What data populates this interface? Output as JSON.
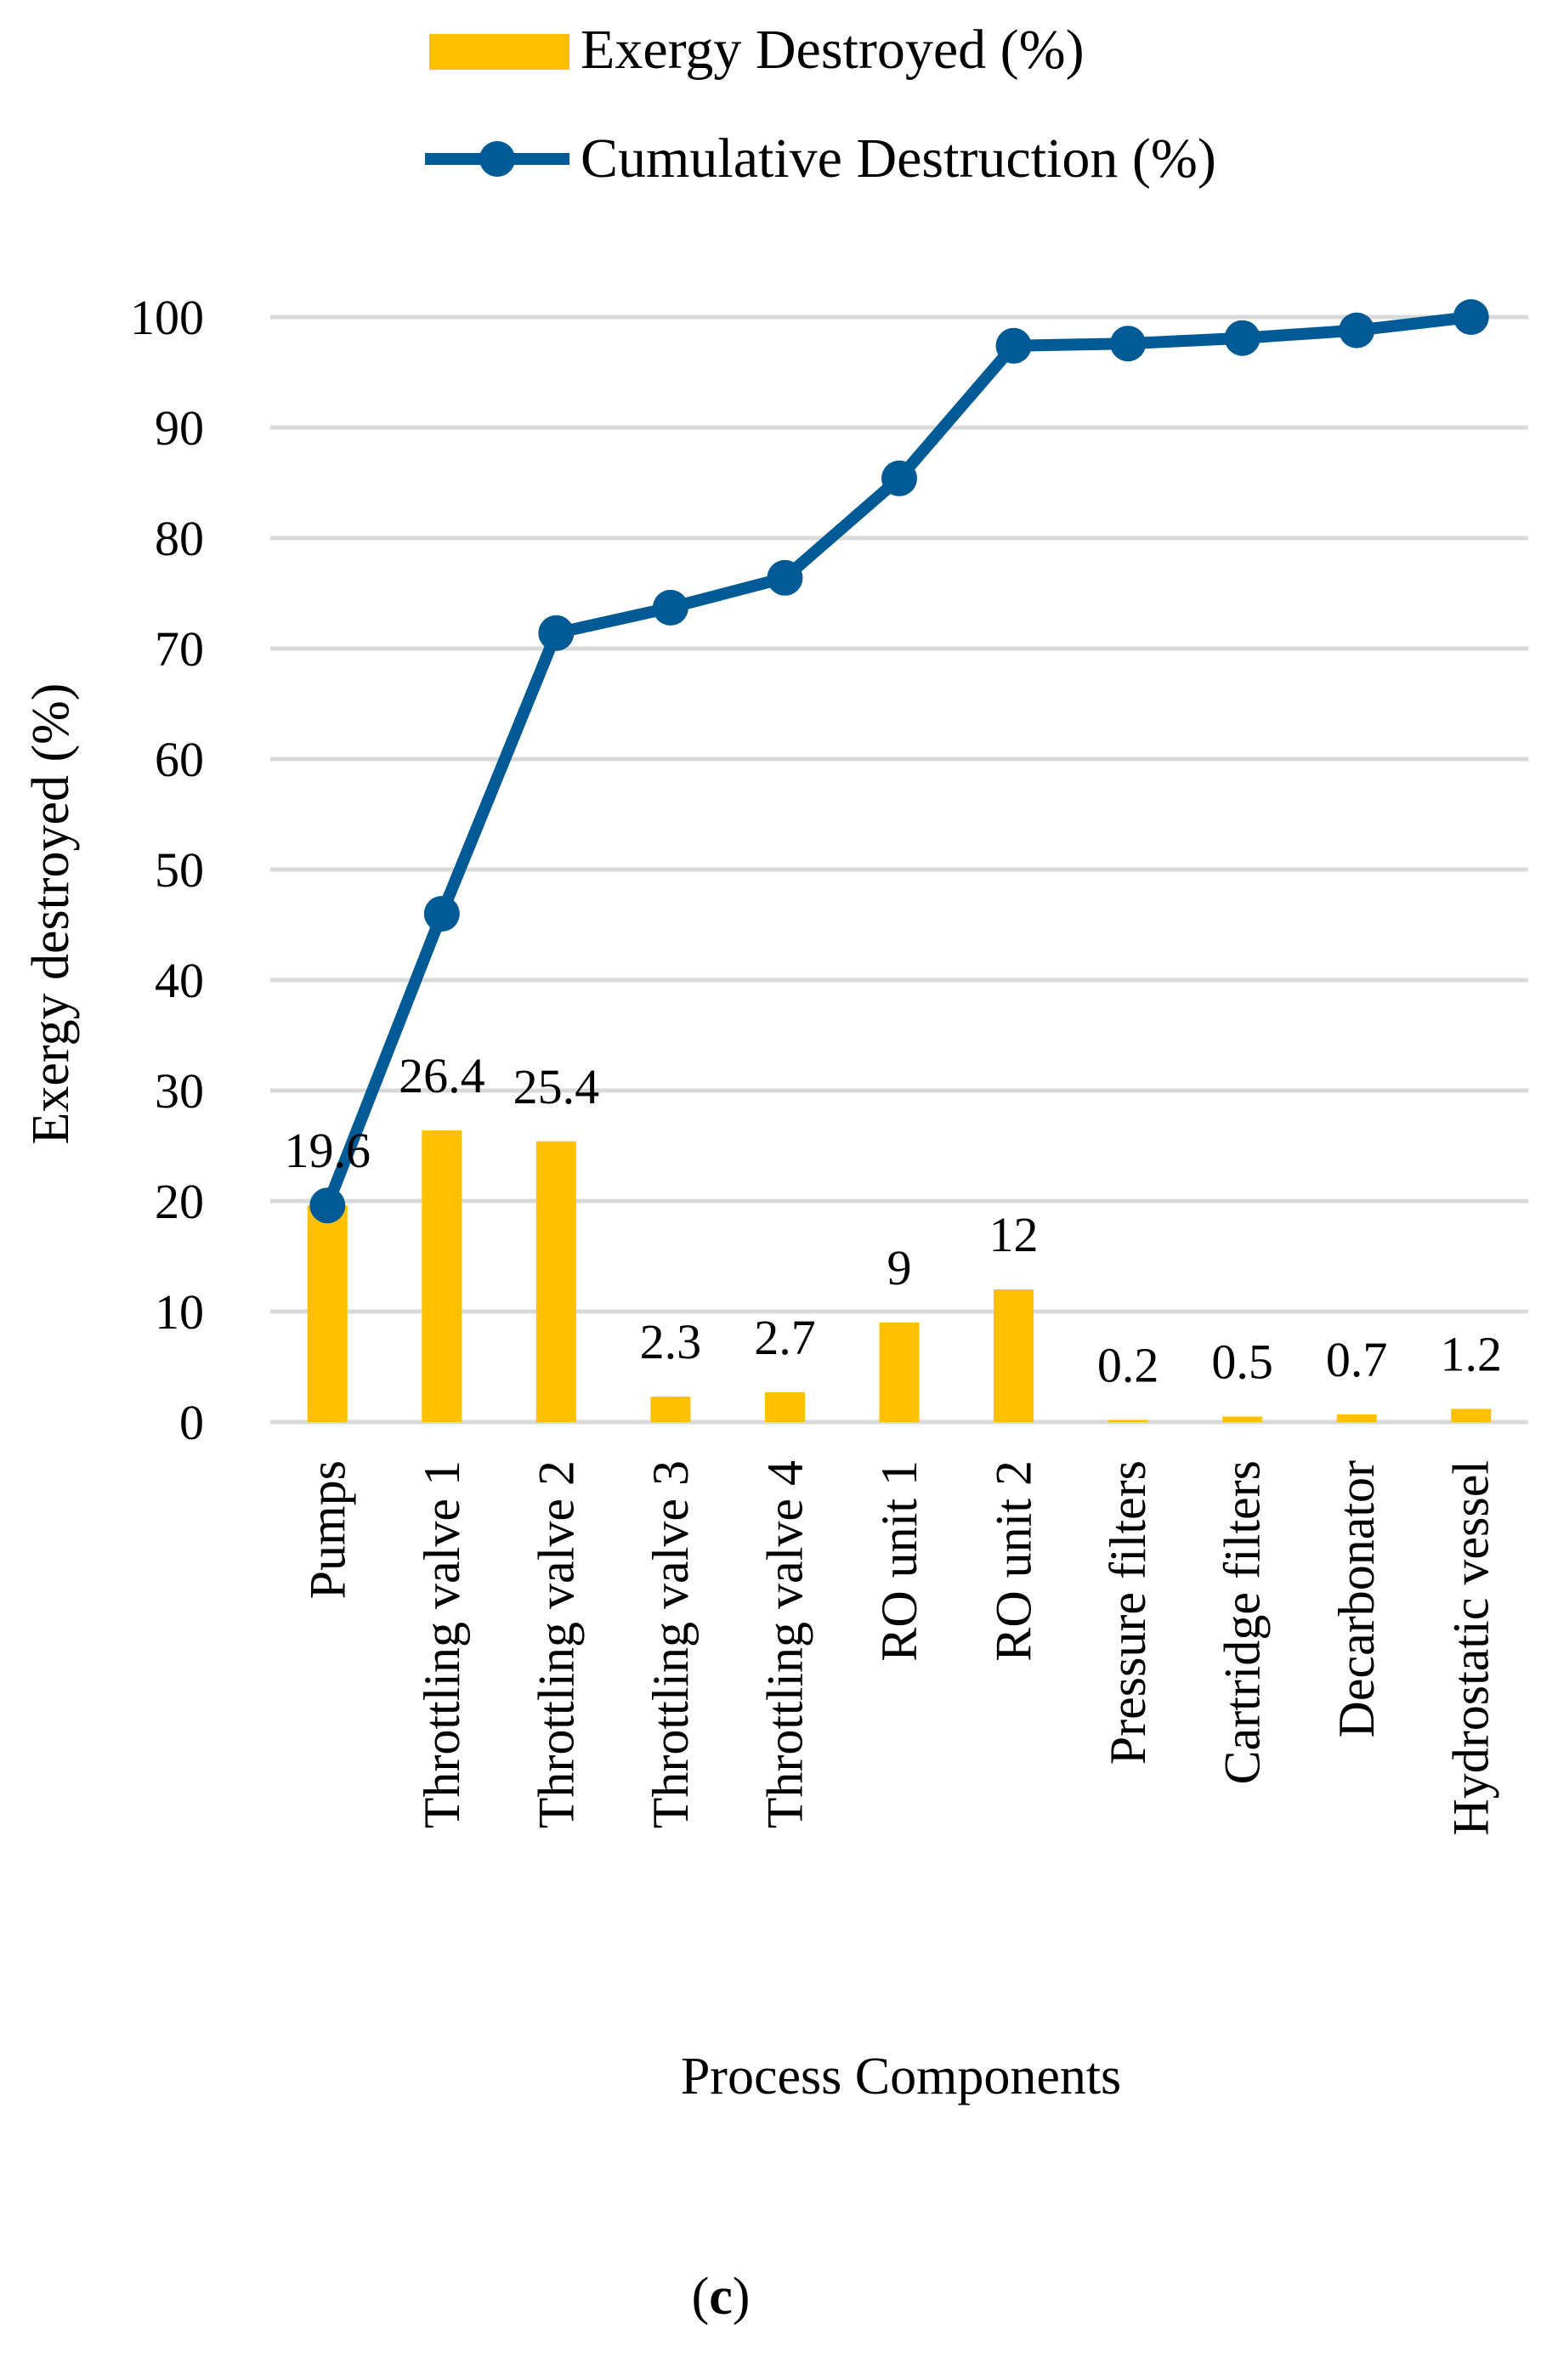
{
  "chart_data": {
    "type": "bar",
    "title": "",
    "xlabel": "Process Components",
    "ylabel": "Exergy destroyed (%)",
    "ylim": [
      0,
      100
    ],
    "yticks": [
      0,
      10,
      20,
      30,
      40,
      50,
      60,
      70,
      80,
      90,
      100
    ],
    "grid": true,
    "legend_position": "top",
    "categories": [
      "Pumps",
      "Throttling valve 1",
      "Throttling valve 2",
      "Throttling valve 3",
      "Throttling valve 4",
      "RO unit 1",
      "RO unit 2",
      "Pressure filters",
      "Cartridge filters",
      "Decarbonator",
      "Hydrostatic vessel"
    ],
    "series": [
      {
        "name": "Exergy Destroyed (%)",
        "kind": "bar",
        "color": "#FFC000",
        "values": [
          19.6,
          26.4,
          25.4,
          2.3,
          2.7,
          9,
          12,
          0.2,
          0.5,
          0.7,
          1.2
        ],
        "data_labels": [
          "19.6",
          "26.4",
          "25.4",
          "2.3",
          "2.7",
          "9",
          "12",
          "0.2",
          "0.5",
          "0.7",
          "1.2"
        ]
      },
      {
        "name": "Cumulative Destruction (%)",
        "kind": "line",
        "color": "#005A96",
        "values": [
          19.6,
          46.0,
          71.4,
          73.7,
          76.4,
          85.4,
          97.4,
          97.6,
          98.1,
          98.8,
          100.0
        ]
      }
    ]
  },
  "caption": {
    "open": "(",
    "letter": "c",
    "close": ")"
  }
}
